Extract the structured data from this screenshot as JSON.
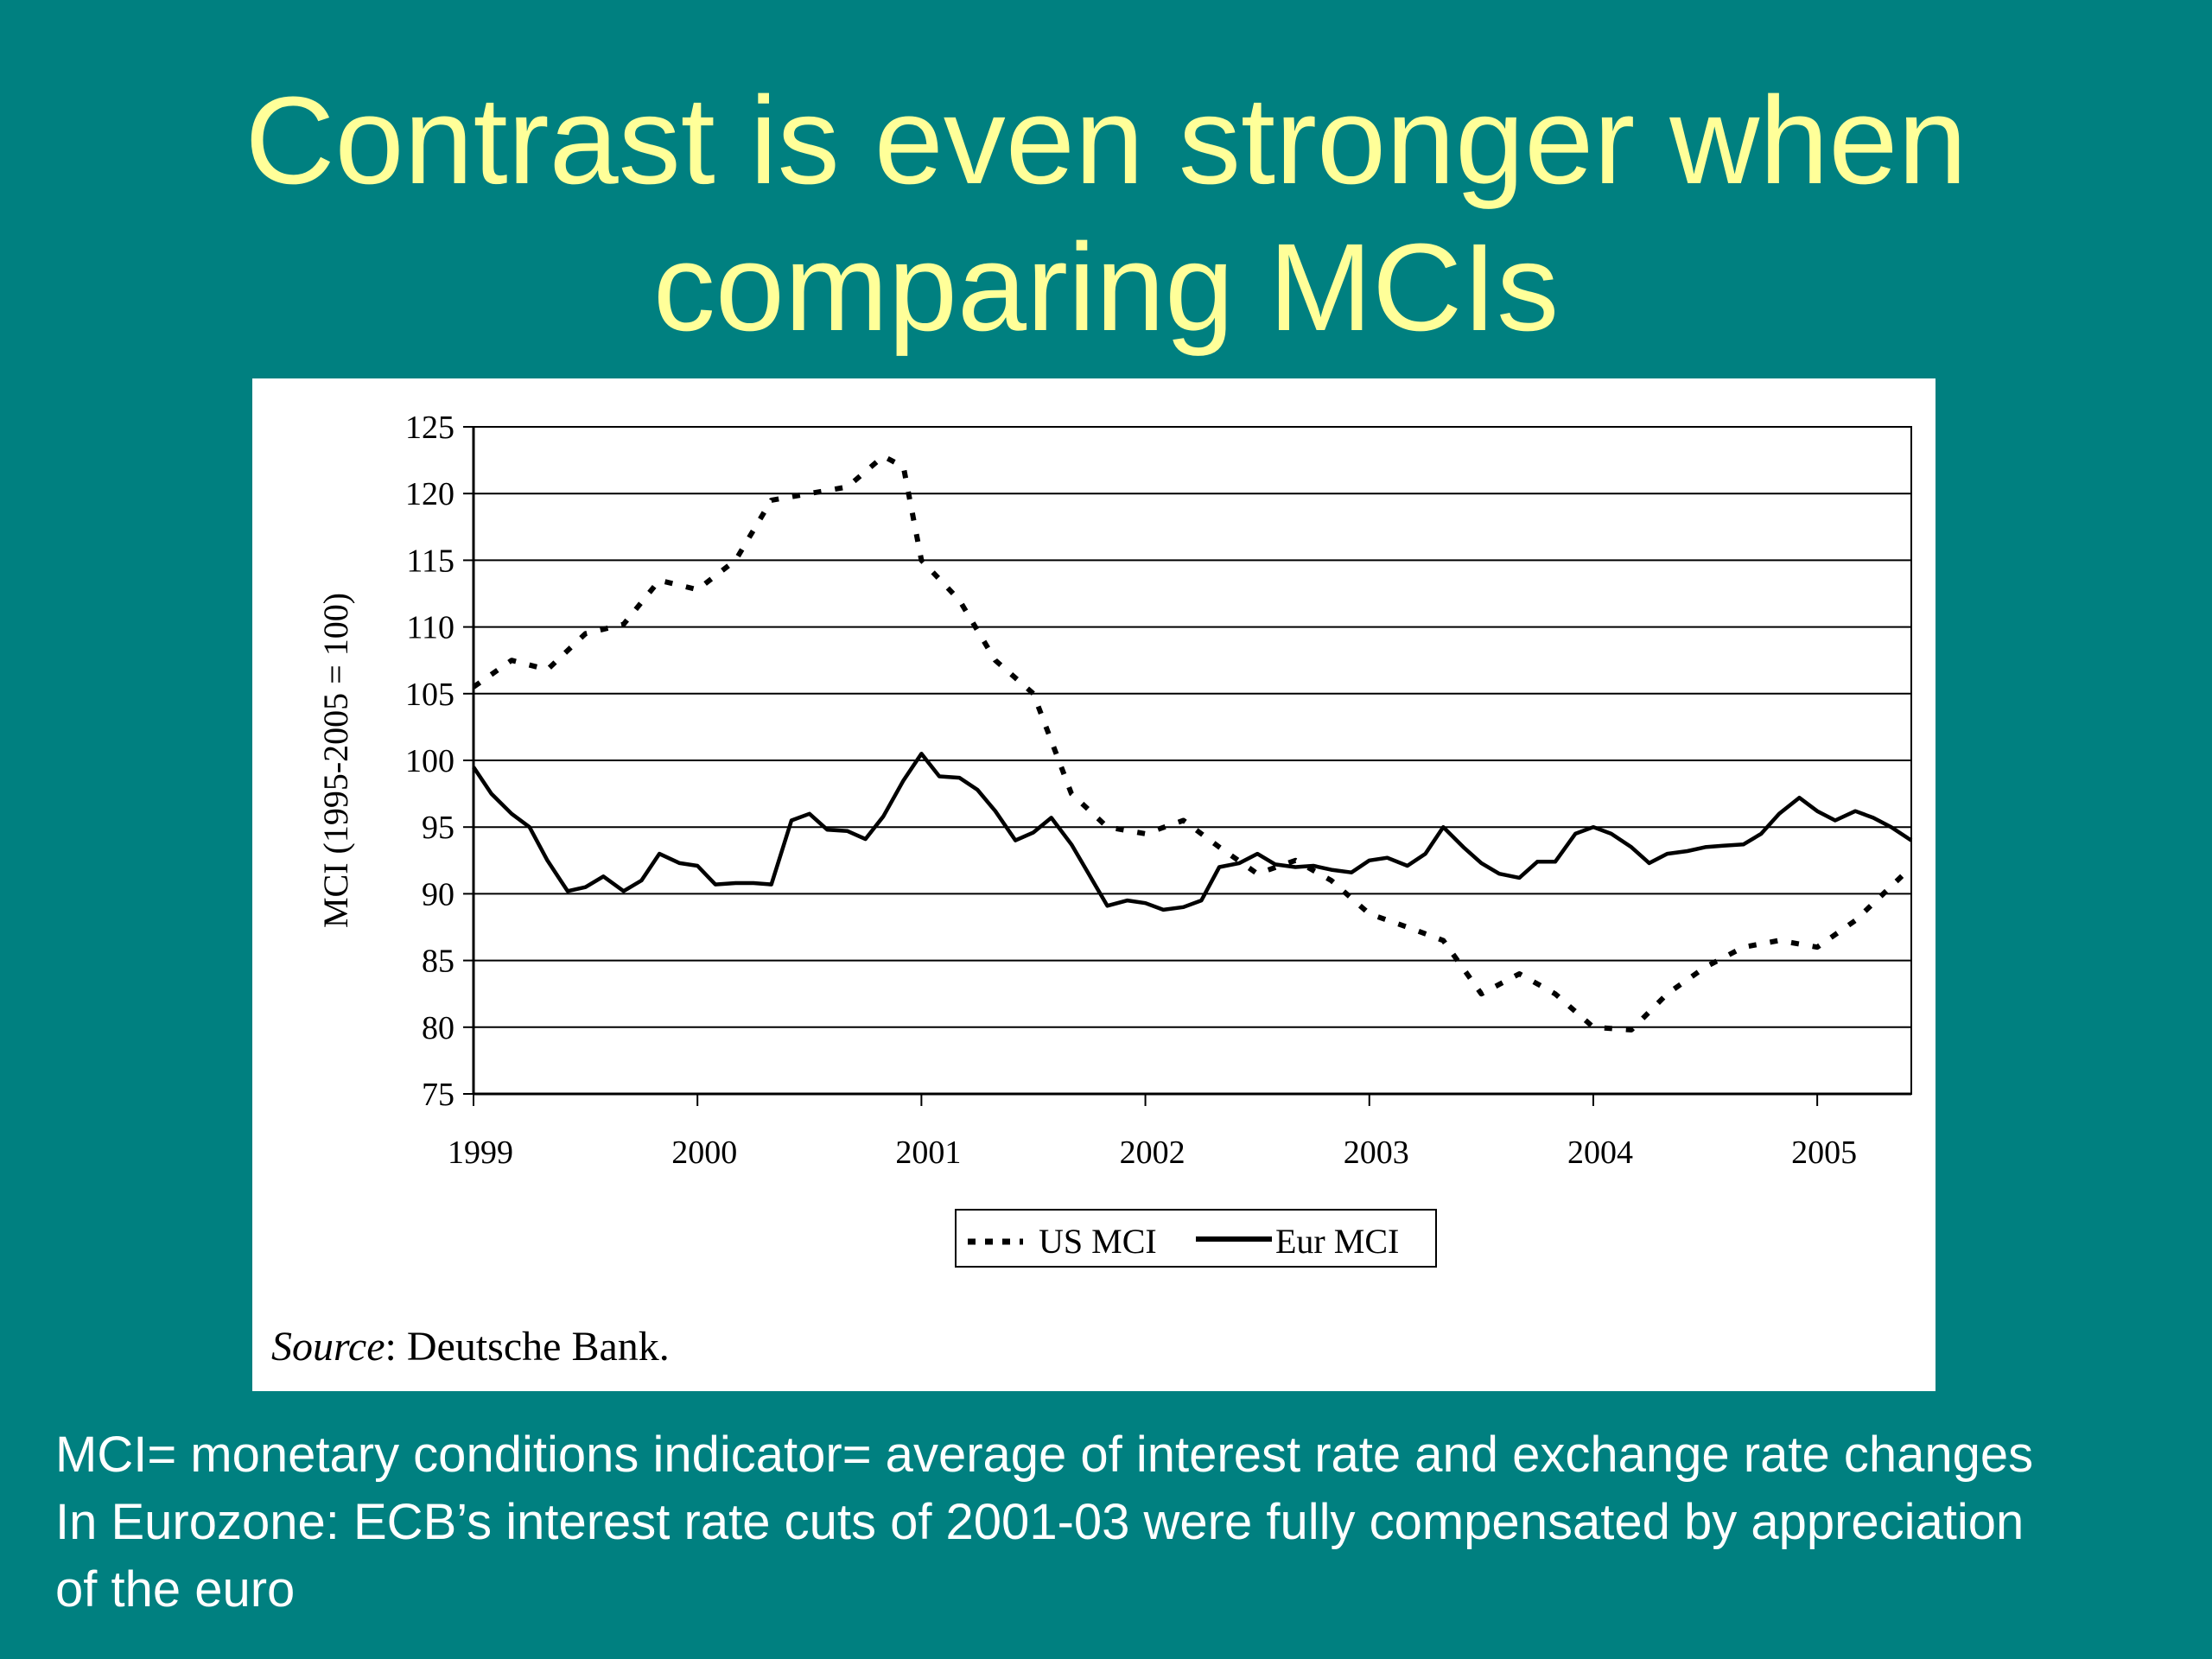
{
  "slide": {
    "title_line1": "Contrast is even stronger when",
    "title_line2": "comparing MCIs",
    "source_label": "Source",
    "source_text": ": Deutsche Bank.",
    "caption_line1": "MCI= monetary conditions indicator= average of interest rate and exchange rate changes",
    "caption_line2": "In Eurozone: ECB’s interest rate cuts of 2001-03 were fully compensated by appreciation",
    "caption_line3": "of the euro",
    "colors": {
      "background": "#008080",
      "title": "#ffff99",
      "caption": "#ffffff",
      "panel": "#ffffff"
    }
  },
  "chart_data": {
    "type": "line",
    "title": "",
    "xlabel": "",
    "ylabel": "MCI (1995-2005 = 100)",
    "ylim": [
      75,
      125
    ],
    "yticks": [
      75,
      80,
      85,
      90,
      95,
      100,
      105,
      110,
      115,
      120,
      125
    ],
    "xlim": [
      1999,
      2005.42
    ],
    "xticks": [
      "1999",
      "2000",
      "2001",
      "2002",
      "2003",
      "2004",
      "2005"
    ],
    "grid": "horizontal",
    "legend_position": "bottom",
    "series": [
      {
        "name": "US MCI",
        "style": "dotted",
        "x": [
          1999.0,
          1999.17,
          1999.33,
          1999.5,
          1999.67,
          1999.83,
          2000.0,
          2000.17,
          2000.33,
          2000.5,
          2000.67,
          2000.83,
          2000.92,
          2001.0,
          2001.17,
          2001.33,
          2001.5,
          2001.67,
          2001.83,
          2002.0,
          2002.17,
          2002.33,
          2002.5,
          2002.67,
          2002.83,
          2003.0,
          2003.17,
          2003.33,
          2003.5,
          2003.67,
          2003.83,
          2004.0,
          2004.17,
          2004.33,
          2004.5,
          2004.67,
          2004.83,
          2005.0,
          2005.17,
          2005.42
        ],
        "y": [
          105.5,
          107.5,
          106.8,
          109.5,
          110.2,
          113.5,
          112.8,
          115.0,
          119.5,
          120.0,
          120.5,
          122.8,
          122.0,
          115.0,
          112.0,
          107.5,
          105.0,
          97.5,
          95.0,
          94.5,
          95.5,
          93.5,
          91.5,
          92.5,
          91.0,
          88.5,
          87.5,
          86.5,
          82.5,
          84.0,
          82.5,
          80.0,
          79.8,
          82.5,
          84.5,
          86.0,
          86.5,
          86.0,
          88.0,
          92.0
        ]
      },
      {
        "name": "Eur MCI",
        "style": "solid",
        "x": [
          1999.0,
          1999.08,
          1999.17,
          1999.25,
          1999.33,
          1999.42,
          1999.5,
          1999.58,
          1999.67,
          1999.75,
          1999.83,
          1999.92,
          2000.0,
          2000.08,
          2000.17,
          2000.25,
          2000.33,
          2000.42,
          2000.5,
          2000.58,
          2000.67,
          2000.75,
          2000.83,
          2000.92,
          2001.0,
          2001.08,
          2001.17,
          2001.25,
          2001.33,
          2001.42,
          2001.5,
          2001.58,
          2001.67,
          2001.75,
          2001.83,
          2001.92,
          2002.0,
          2002.08,
          2002.17,
          2002.25,
          2002.33,
          2002.42,
          2002.5,
          2002.58,
          2002.67,
          2002.75,
          2002.83,
          2002.92,
          2003.0,
          2003.08,
          2003.17,
          2003.25,
          2003.33,
          2003.42,
          2003.5,
          2003.58,
          2003.67,
          2003.75,
          2003.83,
          2003.92,
          2004.0,
          2004.08,
          2004.17,
          2004.25,
          2004.33,
          2004.42,
          2004.5,
          2004.58,
          2004.67,
          2004.75,
          2004.83,
          2004.92,
          2005.0,
          2005.08,
          2005.17,
          2005.25,
          2005.33,
          2005.42
        ],
        "y": [
          99.5,
          97.5,
          96.0,
          95.0,
          92.5,
          90.2,
          90.5,
          91.3,
          90.2,
          91.0,
          93.0,
          92.3,
          92.1,
          90.7,
          90.8,
          90.8,
          90.7,
          95.5,
          96.0,
          94.8,
          94.7,
          94.1,
          95.8,
          98.5,
          100.5,
          98.8,
          98.7,
          97.8,
          96.2,
          94.0,
          94.6,
          95.7,
          93.7,
          91.4,
          89.1,
          89.5,
          89.3,
          88.8,
          89.0,
          89.5,
          92.0,
          92.3,
          93.0,
          92.2,
          92.0,
          92.1,
          91.8,
          91.6,
          92.5,
          92.7,
          92.1,
          93.0,
          95.0,
          93.5,
          92.3,
          91.5,
          91.2,
          92.4,
          92.4,
          94.5,
          95.0,
          94.5,
          93.5,
          92.3,
          93.0,
          93.2,
          93.5,
          93.6,
          93.7,
          94.5,
          96.0,
          97.2,
          96.2,
          95.5,
          96.2,
          95.7,
          95.0,
          94.0
        ]
      }
    ]
  }
}
